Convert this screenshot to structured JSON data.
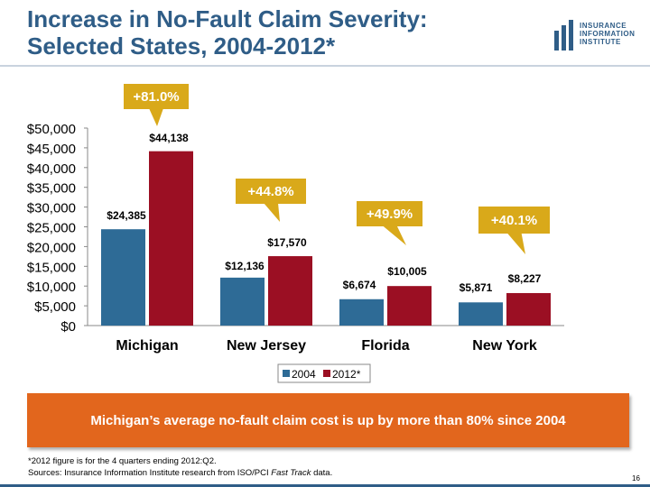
{
  "slide": {
    "title_line1": "Increase in No-Fault Claim Severity:",
    "title_line2": "Selected States, 2004-2012*",
    "logo": {
      "line1": "INSURANCE",
      "line2": "INFORMATION",
      "line3": "INSTITUTE",
      "mark": "iii"
    },
    "banner": "Michigan’s average no-fault claim cost is up by more than 80% since 2004",
    "footnote_line1": "*2012 figure is for the 4 quarters ending 2012:Q2.",
    "footnote_line2_prefix": "Sources:  Insurance Information Institute research from ISO/PCI ",
    "footnote_line2_italic": "Fast Track",
    "footnote_line2_suffix": " data.",
    "page_number": "16"
  },
  "colors": {
    "title": "#2f5d87",
    "series_2004": "#2e6b96",
    "series_2012": "#9b0f23",
    "callout": "#d9a91a",
    "banner": "#e2661d"
  },
  "chart_data": {
    "type": "bar",
    "categories": [
      "Michigan",
      "New Jersey",
      "Florida",
      "New York"
    ],
    "series": [
      {
        "name": "2004",
        "values": [
          24385,
          12136,
          6674,
          5871
        ],
        "labels": [
          "$24,385",
          "$12,136",
          "$6,674",
          "$5,871"
        ]
      },
      {
        "name": "2012*",
        "values": [
          44138,
          17570,
          10005,
          8227
        ],
        "labels": [
          "$44,138",
          "$17,570",
          "$10,005",
          "$8,227"
        ]
      }
    ],
    "callouts": [
      "+81.0%",
      "+44.8%",
      "+49.9%",
      "+40.1%"
    ],
    "ylim": [
      0,
      50000
    ],
    "yticks": [
      0,
      5000,
      10000,
      15000,
      20000,
      25000,
      30000,
      35000,
      40000,
      45000,
      50000
    ],
    "ytick_labels": [
      "$0",
      "$5,000",
      "$10,000",
      "$15,000",
      "$20,000",
      "$25,000",
      "$30,000",
      "$35,000",
      "$40,000",
      "$45,000",
      "$50,000"
    ],
    "legend": [
      "2004",
      "2012*"
    ],
    "legend_position": "bottom",
    "grid": false
  }
}
